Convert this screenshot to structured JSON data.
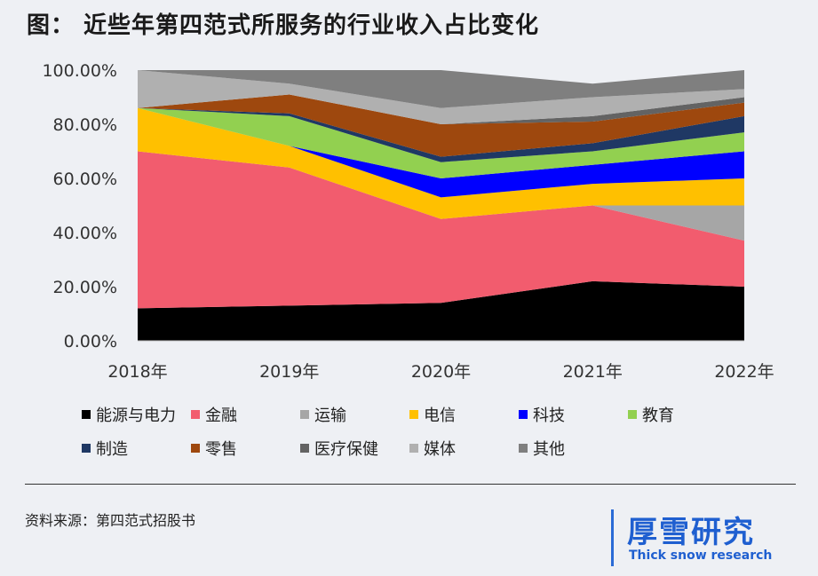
{
  "title": "图： 近些年第四范式所服务的行业收入占比变化",
  "source": "资料来源：第四范式招股书",
  "brand": {
    "name": "厚雪研究",
    "subtitle": "Thick snow research"
  },
  "chart_data": {
    "type": "area",
    "stacked": true,
    "x": [
      "2018年",
      "2019年",
      "2020年",
      "2021年",
      "2022年"
    ],
    "y_ticks": [
      "0.00%",
      "20.00%",
      "40.00%",
      "60.00%",
      "80.00%",
      "100.00%"
    ],
    "ylim": [
      0,
      100
    ],
    "series": [
      {
        "name": "能源与电力",
        "color": "#000000",
        "values": [
          12,
          13,
          14,
          22,
          20
        ]
      },
      {
        "name": "金融",
        "color": "#f25c6e",
        "values": [
          58,
          51,
          31,
          28,
          17
        ]
      },
      {
        "name": "运输",
        "color": "#a6a6a6",
        "values": [
          0,
          0,
          0,
          0,
          13
        ]
      },
      {
        "name": "电信",
        "color": "#ffc000",
        "values": [
          16,
          8,
          8,
          8,
          10
        ]
      },
      {
        "name": "科技",
        "color": "#0000ff",
        "values": [
          0,
          0,
          7,
          7,
          10
        ]
      },
      {
        "name": "教育",
        "color": "#92d050",
        "values": [
          0,
          11,
          6,
          5,
          7
        ]
      },
      {
        "name": "制造",
        "color": "#1f3864",
        "values": [
          0,
          1,
          2,
          3,
          6
        ]
      },
      {
        "name": "零售",
        "color": "#9e480e",
        "values": [
          0,
          7,
          12,
          8,
          5
        ]
      },
      {
        "name": "医疗保健",
        "color": "#636363",
        "values": [
          0,
          0,
          0,
          2,
          2
        ]
      },
      {
        "name": "媒体",
        "color": "#b0b0b0",
        "values": [
          14,
          4,
          6,
          7,
          3
        ]
      },
      {
        "name": "其他",
        "color": "#7f7f7f",
        "values": [
          0,
          5,
          14,
          5,
          7
        ]
      }
    ],
    "grid": false,
    "legend_position": "bottom"
  }
}
